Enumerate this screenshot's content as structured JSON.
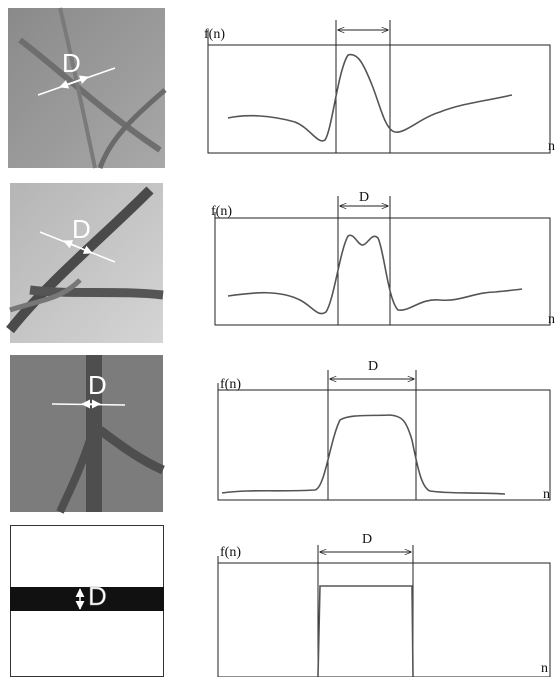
{
  "panels": [
    {
      "image_label": "D",
      "plot": {
        "y_label": "f(n)",
        "x_label": "n"
      }
    },
    {
      "image_label": "D",
      "plot": {
        "y_label": "f(n)",
        "x_label": "n",
        "width_label": "D"
      }
    },
    {
      "image_label": "D",
      "plot": {
        "y_label": "f(n)",
        "x_label": "n",
        "width_label": "D"
      }
    },
    {
      "image_label": "D",
      "plot": {
        "y_label": "f(n)",
        "x_label": "n",
        "width_label": "D"
      }
    }
  ]
}
